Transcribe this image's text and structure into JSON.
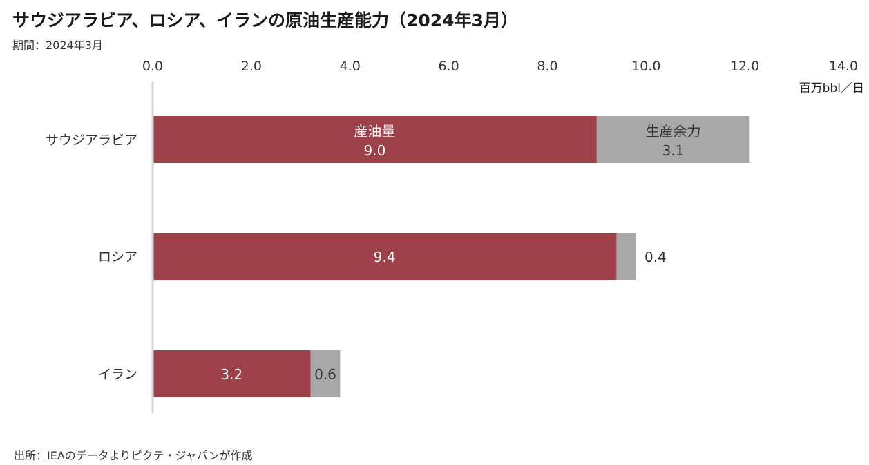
{
  "header": {
    "title": "サウジアラビア、ロシア、イランの原油生産能力（2024年3月）",
    "subtitle": "期間：2024年3月"
  },
  "footer": {
    "source": "出所：IEAのデータよりピクテ・ジャパンが作成"
  },
  "chart_data": {
    "type": "bar",
    "orientation": "horizontal",
    "stacked": true,
    "categories": [
      "サウジアラビア",
      "ロシア",
      "イラン"
    ],
    "series": [
      {
        "name": "産油量",
        "values": [
          9.0,
          9.4,
          3.2
        ],
        "value_labels": [
          "9.0",
          "9.4",
          "3.2"
        ],
        "color": "#9e4047"
      },
      {
        "name": "生産余力",
        "values": [
          3.1,
          0.4,
          0.6
        ],
        "value_labels": [
          "3.1",
          "0.4",
          "0.6"
        ],
        "color": "#a8a8a8"
      }
    ],
    "xlim": [
      0,
      14
    ],
    "xticks": [
      "0.0",
      "2.0",
      "4.0",
      "6.0",
      "8.0",
      "10.0",
      "12.0",
      "14.0"
    ],
    "x_axis_position": "top",
    "unit": "百万bbl／日",
    "grid": false,
    "legend": "none"
  }
}
